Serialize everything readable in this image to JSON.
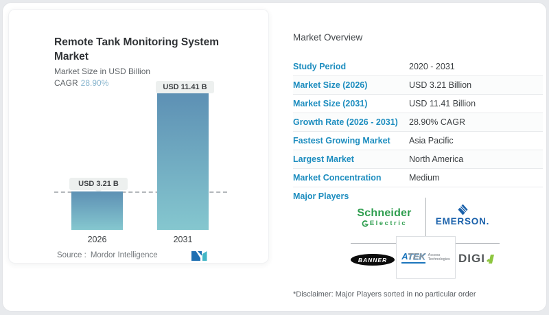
{
  "chart_data": {
    "type": "bar",
    "categories": [
      "2026",
      "2031"
    ],
    "values": [
      3.21,
      11.41
    ],
    "bar_labels": [
      "USD 3.21 B",
      "USD 11.41 B"
    ],
    "title": "Remote Tank Monitoring System Market",
    "subtitle": "Market Size in USD Billion",
    "cagr_label": "CAGR",
    "cagr_value": "28.90%",
    "ylim": [
      0,
      11.41
    ],
    "grid": false,
    "reference_line_at": 3.21,
    "bar_gradient_top": "#5d90b4",
    "bar_gradient_bottom": "#85c7cf"
  },
  "source": {
    "prefix": "Source :",
    "name": "Mordor Intelligence"
  },
  "overview": {
    "title": "Market Overview",
    "rows": [
      {
        "label": "Study Period",
        "value": "2020 - 2031"
      },
      {
        "label": "Market Size (2026)",
        "value": "USD 3.21 Billion"
      },
      {
        "label": "Market Size (2031)",
        "value": "USD 11.41 Billion"
      },
      {
        "label": "Growth Rate (2026 - 2031)",
        "value": "28.90% CAGR"
      },
      {
        "label": "Fastest Growing Market",
        "value": "Asia Pacific"
      },
      {
        "label": "Largest Market",
        "value": "North America"
      },
      {
        "label": "Market Concentration",
        "value": "Medium"
      }
    ],
    "major_players_label": "Major Players",
    "major_players": [
      "Schneider Electric",
      "Emerson",
      "Banner",
      "ATEK Access Technologies",
      "Digi"
    ],
    "disclaimer": "*Disclaimer: Major Players sorted in no particular order"
  },
  "logos": {
    "schneider": {
      "line1": "Schneider",
      "line2": "Electric"
    },
    "emerson": {
      "word": "EMERSON."
    },
    "banner": {
      "word": "BANNER"
    },
    "atek": {
      "a": "A",
      "tek": "TEK",
      "sub1": "Access",
      "sub2": "Technologies"
    },
    "digi": {
      "word": "DIGI"
    }
  },
  "colors": {
    "page_background": "#e8eaed",
    "card_background": "#ffffff",
    "table_label_blue": "#1d8dbf",
    "value_text": "#3c4043",
    "cagr_value_blue": "#87b4cd",
    "bar_top": "#5d90b4",
    "bar_bottom": "#85c7cf",
    "pill_background": "#edf0ef",
    "schneider_green": "#2f9e4f",
    "emerson_blue": "#1a61ab",
    "atek_blue": "#1b75bc",
    "digi_gray": "#54585a",
    "digi_green": "#8dc63f",
    "mordor_blue": "#1e6fb2",
    "mordor_teal": "#43b6c6"
  }
}
